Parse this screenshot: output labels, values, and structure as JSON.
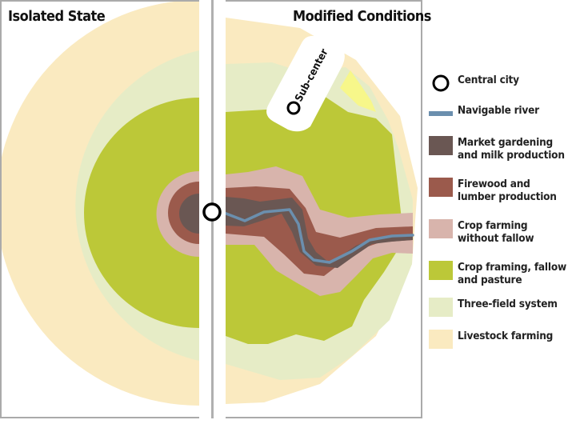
{
  "titles": {
    "left": "Isolated State",
    "right": "Modified Conditions"
  },
  "subcenter_label": "Sub-center",
  "colors": {
    "central_city": "#ffffff",
    "river": "#6b8fae",
    "market_gardening": "#6a5753",
    "firewood": "#9b5a4c",
    "crop_no_fallow": "#d8b4ac",
    "crop_fallow_pasture": "#bcc838",
    "three_field": "#e6ecc6",
    "livestock": "#faeac0",
    "highlight_yellow": "#f7f78a",
    "frame": "#aaaaaa"
  },
  "legend": [
    {
      "key": "central_city",
      "label": "Central city",
      "icon": "circle-icon"
    },
    {
      "key": "navigable_river",
      "label": "Navigable river",
      "icon": "river-line-icon"
    },
    {
      "key": "market_gardening",
      "label": "Market gardening and milk production",
      "icon": "swatch"
    },
    {
      "key": "firewood",
      "label": "Firewood and lumber production",
      "icon": "swatch"
    },
    {
      "key": "crop_no_fallow",
      "label": "Crop farming without fallow",
      "icon": "swatch"
    },
    {
      "key": "crop_fallow_pasture",
      "label": "Crop framing, fallow and pasture",
      "icon": "swatch"
    },
    {
      "key": "three_field",
      "label": "Three-field system",
      "icon": "swatch"
    },
    {
      "key": "livestock",
      "label": "Livestock farming",
      "icon": "swatch"
    }
  ]
}
